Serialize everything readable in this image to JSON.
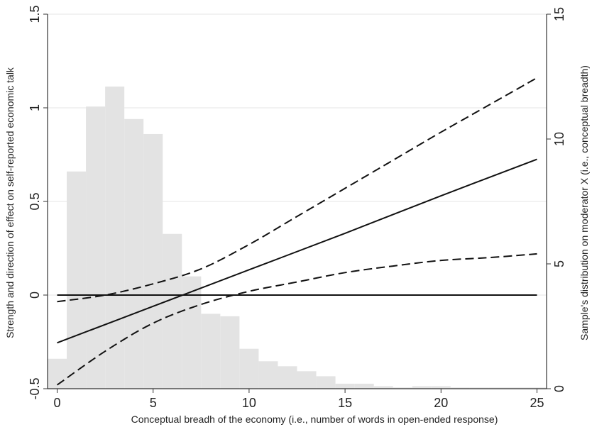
{
  "chart_data": {
    "type": "bar",
    "title": "",
    "xlabel": "Conceptual breadh of the economy (i.e., number of words in open-ended response)",
    "ylabel_left": "Strength and direction of effect on self-reported economic talk",
    "ylabel_right": "Sample's distribution on moderator X (i.e., conceptual breadth)",
    "xlim": [
      -0.5,
      25.5
    ],
    "ylim_left": [
      -0.5,
      1.5
    ],
    "ylim_right": [
      0,
      15
    ],
    "x_ticks": [
      0,
      5,
      10,
      15,
      20,
      25
    ],
    "x_tick_labels": [
      "0",
      "5",
      "10",
      "15",
      "20",
      "25"
    ],
    "y_left_ticks": [
      -0.5,
      0,
      0.5,
      1,
      1.5
    ],
    "y_left_tick_labels": [
      "-0.5",
      "0",
      "0.5",
      "1",
      "1.5"
    ],
    "y_right_ticks": [
      0,
      5,
      10,
      15
    ],
    "y_right_tick_labels": [
      "0",
      "5",
      "10",
      "15"
    ],
    "grid": true,
    "colors": {
      "histogram": "#e3e3e3",
      "lines": "#111111",
      "grid": "#e6e6e6",
      "axis": "#333333"
    },
    "histogram": {
      "axis": "right",
      "bin_centers": [
        0,
        1,
        2,
        3,
        4,
        5,
        6,
        7,
        8,
        9,
        10,
        11,
        12,
        13,
        14,
        15,
        16,
        17,
        18,
        19,
        20,
        21,
        22,
        23,
        24,
        25
      ],
      "values": [
        1.2,
        8.7,
        11.3,
        12.1,
        10.8,
        10.2,
        6.2,
        4.5,
        3.0,
        2.9,
        1.6,
        1.1,
        0.9,
        0.7,
        0.5,
        0.2,
        0.2,
        0.1,
        0.05,
        0.1,
        0.1,
        0.05,
        0.05,
        0.05,
        0.05,
        0.05
      ]
    },
    "series": [
      {
        "style": "solid",
        "x": [
          0,
          5,
          10,
          15,
          20,
          25
        ],
        "y": [
          -0.255,
          -0.06,
          0.135,
          0.33,
          0.53,
          0.725
        ]
      },
      {
        "style": "dashed",
        "x": [
          0,
          2.5,
          5,
          7.5,
          10,
          12.5,
          15,
          17.5,
          20,
          22.5,
          25
        ],
        "y": [
          -0.035,
          0.0,
          0.06,
          0.14,
          0.27,
          0.42,
          0.57,
          0.72,
          0.87,
          1.015,
          1.16
        ]
      },
      {
        "style": "dashed",
        "x": [
          0,
          2.5,
          5,
          7.5,
          10,
          12.5,
          15,
          17.5,
          20,
          22.5,
          25
        ],
        "y": [
          -0.48,
          -0.3,
          -0.15,
          -0.05,
          0.02,
          0.07,
          0.12,
          0.155,
          0.185,
          0.2,
          0.22
        ]
      },
      {
        "style": "solid",
        "x": [
          0,
          25
        ],
        "y": [
          0,
          0
        ]
      }
    ]
  }
}
